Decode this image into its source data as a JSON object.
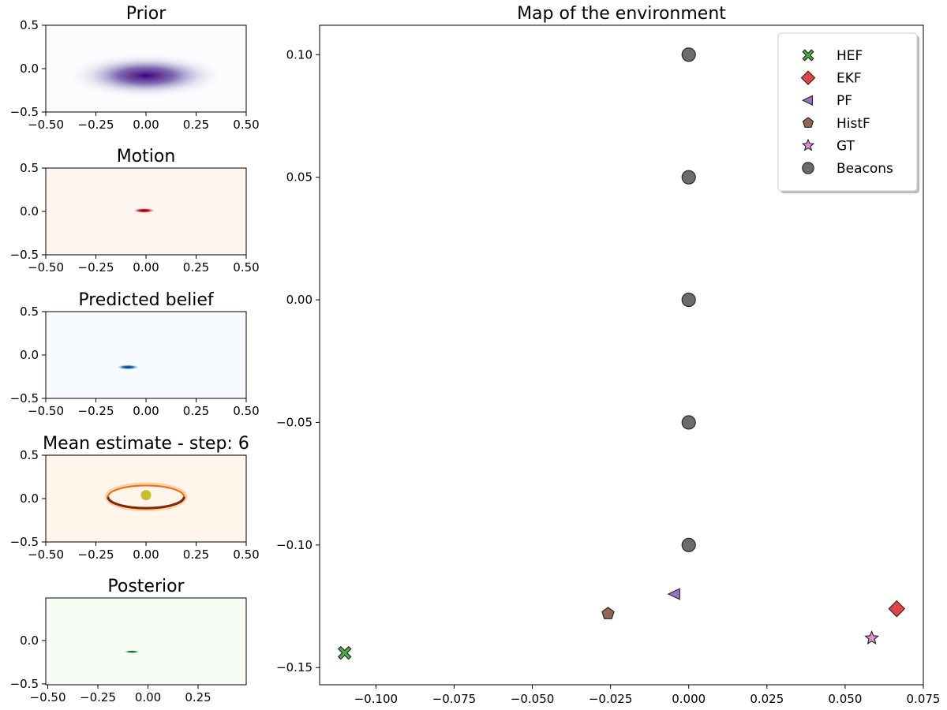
{
  "figure": {
    "panels": [
      {
        "id": "prior",
        "title": "Prior",
        "colormap": "purples",
        "xticks": [
          "−0.50",
          "−0.25",
          "0.00",
          "0.25",
          "0.50"
        ],
        "yticks": [
          "0.5",
          "0.0",
          "−0.5"
        ]
      },
      {
        "id": "motion",
        "title": "Motion",
        "colormap": "reds",
        "xticks": [
          "−0.50",
          "−0.25",
          "0.00",
          "0.25",
          "0.50"
        ],
        "yticks": [
          "0.5",
          "0.0",
          "−0.5"
        ]
      },
      {
        "id": "predicted",
        "title": "Predicted belief",
        "colormap": "blues",
        "xticks": [
          "−0.50",
          "−0.25",
          "0.00",
          "0.25",
          "0.50"
        ],
        "yticks": [
          "0.5",
          "0.0",
          "−0.5"
        ]
      },
      {
        "id": "mean",
        "title": "Mean estimate - step: 6",
        "colormap": "oranges",
        "xticks": [
          "−0.50",
          "−0.25",
          "0.00",
          "0.25",
          "0.50"
        ],
        "yticks": [
          "0.5",
          "0.0",
          "−0.5"
        ]
      },
      {
        "id": "posterior",
        "title": "Posterior",
        "colormap": "greens",
        "xticks": [
          "−0.50",
          "−0.25",
          "0.00",
          "0.25"
        ],
        "yticks": [
          "0.0",
          "−0.5"
        ]
      }
    ]
  },
  "chart_data": [
    {
      "type": "heatmap",
      "title": "Prior",
      "colormap": "Purples",
      "xlim": [
        -0.5,
        0.5
      ],
      "ylim": [
        -0.5,
        0.5
      ],
      "peak": {
        "x": 0.0,
        "y": -0.08
      },
      "spread": {
        "x": 0.2,
        "y": 0.13
      }
    },
    {
      "type": "heatmap",
      "title": "Motion",
      "colormap": "Reds",
      "xlim": [
        -0.5,
        0.5
      ],
      "ylim": [
        -0.5,
        0.5
      ],
      "peak": {
        "x": -0.01,
        "y": 0.01
      },
      "spread": {
        "x": 0.03,
        "y": 0.015
      }
    },
    {
      "type": "heatmap",
      "title": "Predicted belief",
      "colormap": "Blues",
      "xlim": [
        -0.5,
        0.5
      ],
      "ylim": [
        -0.5,
        0.5
      ],
      "peak": {
        "x": -0.09,
        "y": -0.14
      },
      "spread": {
        "x": 0.03,
        "y": 0.015
      }
    },
    {
      "type": "heatmap",
      "title": "Mean estimate - step: 6",
      "colormap": "Oranges",
      "xlim": [
        -0.5,
        0.5
      ],
      "ylim": [
        -0.5,
        0.5
      ],
      "ring": {
        "cx": 0.0,
        "cy": 0.02,
        "rx": 0.19,
        "ry": 0.13
      },
      "mean_point": {
        "x": 0.0,
        "y": 0.04,
        "color": "#c8bf2a"
      }
    },
    {
      "type": "heatmap",
      "title": "Posterior",
      "colormap": "Greens",
      "xlim": [
        -0.51,
        0.49
      ],
      "ylim": [
        -0.51,
        0.49
      ],
      "peak": {
        "x": -0.08,
        "y": -0.13
      },
      "spread": {
        "x": 0.02,
        "y": 0.008
      }
    },
    {
      "type": "scatter",
      "title": "Map of the environment",
      "xlim": [
        -0.118,
        0.075
      ],
      "ylim": [
        -0.157,
        0.112
      ],
      "xticks": [
        -0.1,
        -0.075,
        -0.05,
        -0.025,
        0.0,
        0.025,
        0.05,
        0.075
      ],
      "xtick_labels": [
        "−0.100",
        "−0.075",
        "−0.050",
        "−0.025",
        "0.000",
        "0.025",
        "0.050",
        "0.075"
      ],
      "yticks": [
        0.1,
        0.05,
        0.0,
        -0.05,
        -0.1,
        -0.15
      ],
      "ytick_labels": [
        "0.10",
        "0.05",
        "0.00",
        "−0.05",
        "−0.10",
        "−0.15"
      ],
      "grid": false,
      "legend_position": "top-right",
      "series": [
        {
          "name": "HEF",
          "marker": "X",
          "color": "#4aad4a",
          "points": [
            [
              -0.11,
              -0.144
            ]
          ]
        },
        {
          "name": "EKF",
          "marker": "diamond",
          "color": "#e04646",
          "points": [
            [
              0.0665,
              -0.126
            ]
          ]
        },
        {
          "name": "PF",
          "marker": "triangle-left",
          "color": "#9b72c7",
          "points": [
            [
              -0.0045,
              -0.12
            ]
          ]
        },
        {
          "name": "HistF",
          "marker": "pentagon",
          "color": "#8f6656",
          "points": [
            [
              -0.0258,
              -0.128
            ]
          ]
        },
        {
          "name": "GT",
          "marker": "star",
          "color": "#e58fd2",
          "points": [
            [
              0.0585,
              -0.138
            ]
          ]
        },
        {
          "name": "Beacons",
          "marker": "circle",
          "color": "#6b6b6b",
          "points": [
            [
              0.0,
              0.1
            ],
            [
              0.0,
              0.05
            ],
            [
              0.0,
              0.0
            ],
            [
              0.0,
              -0.05
            ],
            [
              0.0,
              -0.1
            ]
          ]
        }
      ]
    }
  ]
}
